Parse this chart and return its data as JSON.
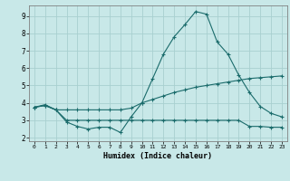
{
  "title": "",
  "xlabel": "Humidex (Indice chaleur)",
  "bg_color": "#c8e8e8",
  "grid_color": "#a8d0d0",
  "line_color": "#1a6b6b",
  "xlim": [
    -0.5,
    23.5
  ],
  "ylim": [
    1.8,
    9.6
  ],
  "yticks": [
    2,
    3,
    4,
    5,
    6,
    7,
    8,
    9
  ],
  "xticks": [
    0,
    1,
    2,
    3,
    4,
    5,
    6,
    7,
    8,
    9,
    10,
    11,
    12,
    13,
    14,
    15,
    16,
    17,
    18,
    19,
    20,
    21,
    22,
    23
  ],
  "line1_x": [
    0,
    1,
    2,
    3,
    4,
    5,
    6,
    7,
    8,
    9,
    10,
    11,
    12,
    13,
    14,
    15,
    16,
    17,
    18,
    19,
    20,
    21,
    22,
    23
  ],
  "line1_y": [
    3.75,
    3.9,
    3.6,
    2.9,
    2.65,
    2.5,
    2.6,
    2.6,
    2.3,
    3.2,
    4.0,
    5.4,
    6.8,
    7.8,
    8.5,
    9.25,
    9.1,
    7.5,
    6.8,
    5.6,
    4.6,
    3.8,
    3.4,
    3.2
  ],
  "line2_x": [
    0,
    1,
    2,
    3,
    4,
    5,
    6,
    7,
    8,
    9,
    10,
    11,
    12,
    13,
    14,
    15,
    16,
    17,
    18,
    19,
    20,
    21,
    22,
    23
  ],
  "line2_y": [
    3.75,
    3.85,
    3.6,
    3.6,
    3.6,
    3.6,
    3.6,
    3.6,
    3.6,
    3.7,
    4.0,
    4.2,
    4.4,
    4.6,
    4.75,
    4.9,
    5.0,
    5.1,
    5.2,
    5.3,
    5.4,
    5.45,
    5.5,
    5.55
  ],
  "line3_x": [
    0,
    1,
    2,
    3,
    4,
    5,
    6,
    7,
    8,
    9,
    10,
    11,
    12,
    13,
    14,
    15,
    16,
    17,
    18,
    19,
    20,
    21,
    22,
    23
  ],
  "line3_y": [
    3.75,
    3.85,
    3.6,
    3.0,
    3.0,
    3.0,
    3.0,
    3.0,
    3.0,
    3.0,
    3.0,
    3.0,
    3.0,
    3.0,
    3.0,
    3.0,
    3.0,
    3.0,
    3.0,
    3.0,
    2.65,
    2.65,
    2.6,
    2.6
  ]
}
